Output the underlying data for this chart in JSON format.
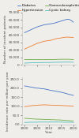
{
  "years": [
    2000,
    2001,
    2002,
    2003,
    2004,
    2005,
    2006,
    2007,
    2008,
    2009,
    2010,
    2011,
    2012,
    2013,
    2014,
    2015,
    2016,
    2017,
    2018,
    2019,
    2020
  ],
  "top_chart": {
    "ylabel": "Number of incident patients",
    "ylim": [
      0,
      70000
    ],
    "yticks": [
      0,
      10000,
      20000,
      30000,
      40000,
      50000,
      60000,
      70000
    ],
    "ytick_labels": [
      "0",
      "10,000",
      "20,000",
      "30,000",
      "40,000",
      "50,000",
      "60,000",
      "70,000"
    ],
    "diabetes": [
      43000,
      44500,
      46000,
      47500,
      49000,
      50500,
      51500,
      52500,
      53500,
      54000,
      54500,
      55000,
      55500,
      56500,
      57500,
      58500,
      59500,
      60500,
      61000,
      59500,
      57000
    ],
    "hypertension": [
      21000,
      22500,
      24000,
      25500,
      27000,
      28500,
      29500,
      30500,
      31500,
      32000,
      32500,
      33000,
      34000,
      35000,
      35500,
      36000,
      36500,
      37000,
      37000,
      36800,
      36500
    ],
    "glomerulonephritis": [
      7000,
      7100,
      7200,
      7100,
      7000,
      7000,
      7000,
      7000,
      7000,
      7000,
      7000,
      7100,
      7200,
      7300,
      7400,
      7500,
      7500,
      7500,
      7500,
      7300,
      7200
    ],
    "cystic_kidney": [
      2400,
      2500,
      2700,
      2800,
      2900,
      3000,
      3000,
      3100,
      3100,
      3200,
      3200,
      3300,
      3400,
      3500,
      3500,
      3600,
      3600,
      3700,
      3700,
      3600,
      3500
    ]
  },
  "bottom_chart": {
    "ylabel": "Incidence rate per million per year",
    "ylim": [
      0,
      260
    ],
    "yticks": [
      0,
      50,
      100,
      150,
      200,
      250
    ],
    "ytick_labels": [
      "0.0",
      "50.0",
      "100.0",
      "150.0",
      "200.0",
      "250.0"
    ],
    "diabetes": [
      212,
      210,
      207,
      205,
      202,
      200,
      199,
      197,
      196,
      193,
      190,
      187,
      185,
      182,
      180,
      177,
      174,
      170,
      166,
      163,
      160
    ],
    "hypertension": [
      97,
      99,
      101,
      103,
      104,
      105,
      106,
      107,
      107,
      107,
      106,
      106,
      105,
      105,
      104,
      104,
      103,
      102,
      102,
      101,
      100
    ],
    "glomerulonephritis": [
      33,
      32,
      31,
      30,
      29,
      28,
      28,
      27,
      27,
      26,
      26,
      25,
      25,
      24,
      24,
      23,
      22,
      21,
      20,
      19,
      18
    ],
    "cystic_kidney": [
      10,
      10,
      11,
      11,
      11,
      11,
      12,
      12,
      12,
      12,
      12,
      12,
      12,
      12,
      12,
      12,
      11,
      11,
      11,
      11,
      10
    ]
  },
  "colors": {
    "diabetes": "#4472C4",
    "hypertension": "#ED7D31",
    "glomerulonephritis": "#70AD47",
    "cystic_kidney": "#4DBFBF"
  },
  "legend_labels": [
    "Diabetes",
    "Hypertension",
    "Glomerulonephritis",
    "Cystic kidney"
  ],
  "legend_keys": [
    "diabetes",
    "hypertension",
    "glomerulonephritis",
    "cystic_kidney"
  ],
  "xlabel": "Year",
  "background_color": "#f0eeeb",
  "linewidth": 0.6,
  "fontsize_tick": 3.0,
  "fontsize_label": 3.2,
  "fontsize_legend": 3.0
}
